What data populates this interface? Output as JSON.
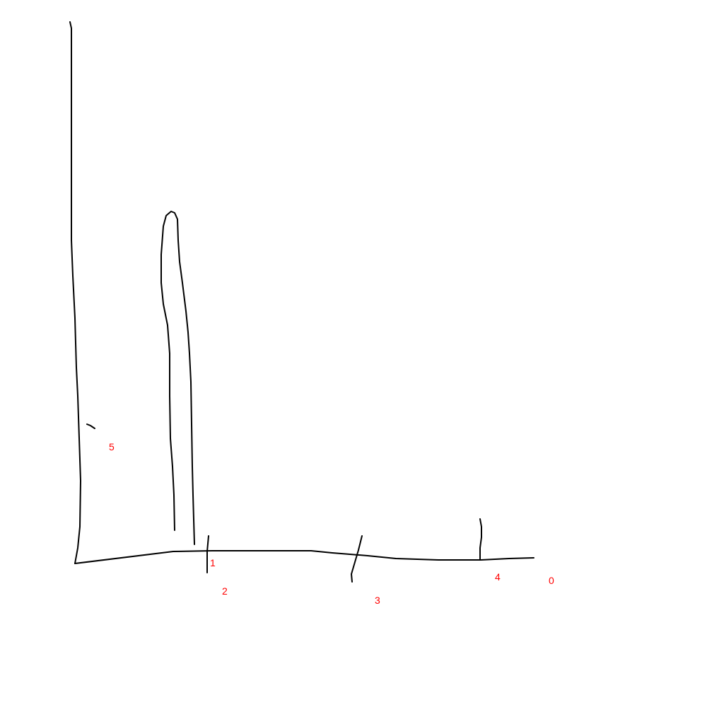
{
  "colors": {
    "stroke": "#000000",
    "label": "#ff0000",
    "background": "#ffffff"
  },
  "labels": [
    "1",
    "2",
    "3",
    "4",
    "0",
    "5"
  ]
}
